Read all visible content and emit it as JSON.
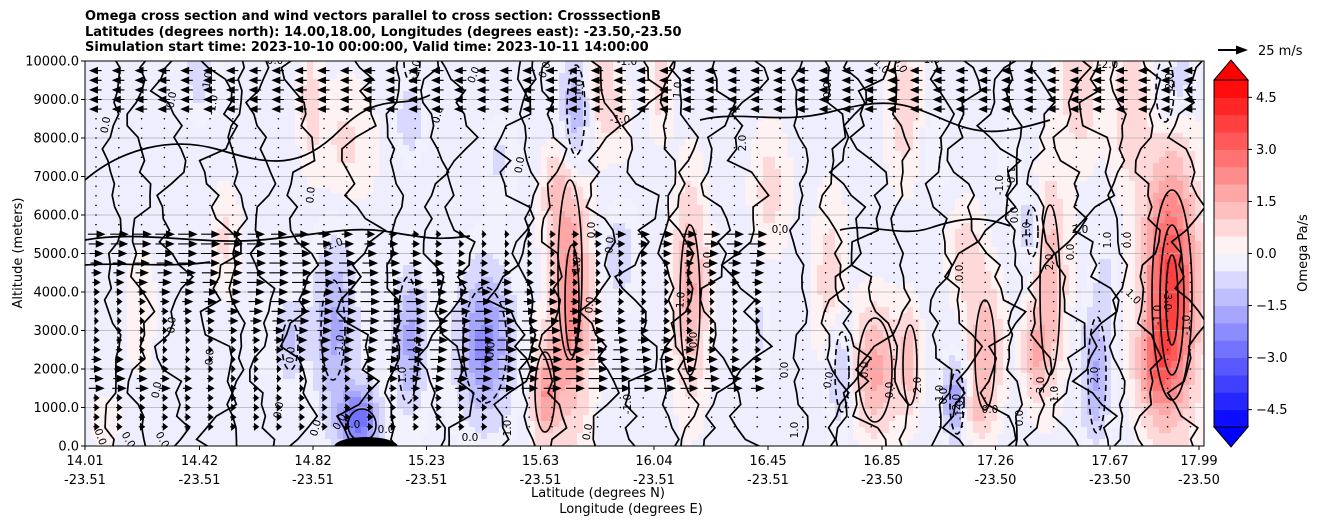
{
  "chart_data": {
    "type": "contour",
    "title_lines": [
      "Omega cross section and wind vectors parallel to cross section: CrosssectionB",
      "Latitudes (degrees north): 14.00,18.00, Longitudes (degrees east): -23.50,-23.50",
      "Simulation start time: 2023-10-10 00:00:00, Valid time: 2023-10-11 14:00:00"
    ],
    "ylabel": "Altitude (meters)",
    "xlabel_lines": [
      "Latitude (degrees N)",
      "Longitude (degrees E)"
    ],
    "ylim": [
      0,
      10000
    ],
    "yticks": [
      "0.0",
      "1000.0",
      "2000.0",
      "3000.0",
      "4000.0",
      "5000.0",
      "6000.0",
      "7000.0",
      "8000.0",
      "9000.0",
      "10000.0"
    ],
    "xticks": [
      {
        "lat": "14.01",
        "lon": "-23.51"
      },
      {
        "lat": "14.42",
        "lon": "-23.51"
      },
      {
        "lat": "14.82",
        "lon": "-23.51"
      },
      {
        "lat": "15.23",
        "lon": "-23.51"
      },
      {
        "lat": "15.63",
        "lon": "-23.51"
      },
      {
        "lat": "16.04",
        "lon": "-23.51"
      },
      {
        "lat": "16.45",
        "lon": "-23.51"
      },
      {
        "lat": "16.85",
        "lon": "-23.50"
      },
      {
        "lat": "17.26",
        "lon": "-23.50"
      },
      {
        "lat": "17.67",
        "lon": "-23.50"
      },
      {
        "lat": "17.99",
        "lon": "-23.50"
      }
    ],
    "colorbar": {
      "label": "Omega Pa/s",
      "ticks": [
        "4.5",
        "3.0",
        "1.5",
        "0.0",
        "−1.5",
        "−3.0",
        "−4.5"
      ],
      "range": [
        -5.0,
        5.0
      ],
      "colormap": "bwr",
      "extend": "both"
    },
    "quiver_key": "25 m/s",
    "grid": "horizontal",
    "contour_labels": [
      "0.0",
      "0.0",
      "0.0",
      "0.0",
      "0.0",
      "1.0",
      "0.0",
      "0.0",
      "-1.0",
      "0.0",
      "0.0",
      "-1.0",
      "0.0",
      "0.0",
      "-1.0",
      "0.0",
      "0.0",
      "-1.0",
      "0.0",
      "1.0",
      "0.0",
      "-1.0",
      "-1.0",
      "1.0",
      "2.0",
      "0.0",
      "0.0",
      "1.0",
      "0.0",
      "0.0",
      "0.0",
      "1.0",
      "0.0",
      "0.0",
      "0.0",
      "2.0",
      "0.0",
      "-1.0",
      "1.0",
      "-1.0",
      "3.0",
      "2.0",
      "2.0",
      "-2.0",
      "-2.0",
      "-3.0",
      "-1.0",
      "-1.0",
      "-1.0",
      "0.0",
      "1.0",
      "1.0",
      "0.0",
      "0.0",
      "0.0",
      "1.0",
      "0.0",
      "-1.0",
      "-1.0",
      "0.0",
      "0.0",
      "1.0",
      "0.0",
      "1.0",
      "2.0",
      "0.0",
      "-1.0",
      "-1.0",
      "0.0",
      "1.0",
      "0.0",
      "-2.0",
      "0.0",
      "0.0",
      "0.0",
      "0.0",
      "0.0",
      "-1.0",
      "0.0",
      "0.0"
    ]
  }
}
